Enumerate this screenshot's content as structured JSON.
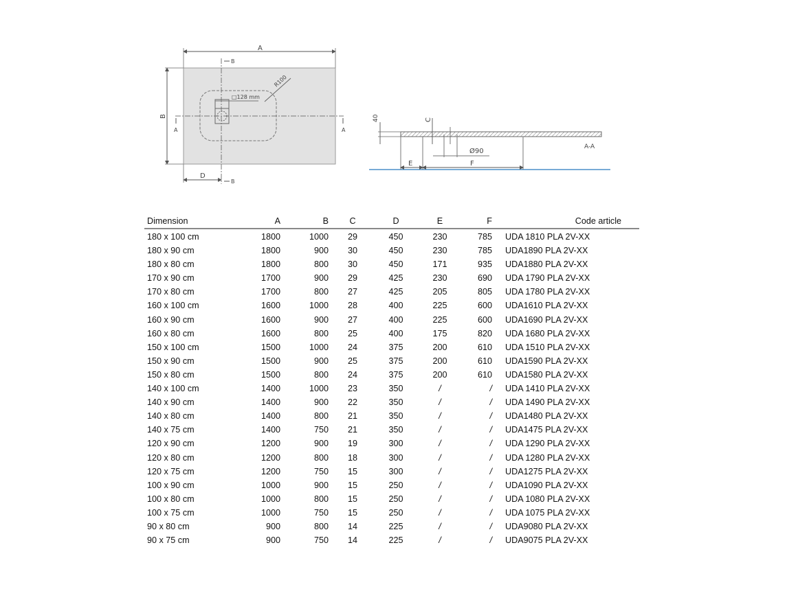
{
  "drawing": {
    "plan": {
      "label_a": "A",
      "label_b": "B",
      "label_d": "D",
      "section_b_top": "B",
      "section_b_bottom": "B",
      "section_a_left": "A",
      "section_a_right": "A",
      "drain_size": "□128 mm",
      "radius": "R100"
    },
    "section": {
      "height_40": "40",
      "label_c": "C",
      "diameter": "Ø90",
      "label_e": "E",
      "label_f": "F",
      "title": "A-A"
    },
    "colors": {
      "tray_fill": "#e2e2e2",
      "floor_line": "#4a8fc9"
    }
  },
  "table": {
    "headers": [
      "Dimension",
      "A",
      "B",
      "C",
      "D",
      "E",
      "F",
      "Code article"
    ],
    "rows": [
      [
        "180 x 100 cm",
        "1800",
        "1000",
        "29",
        "450",
        "230",
        "785",
        "UDA 1810 PLA 2V-XX"
      ],
      [
        "180 x 90 cm",
        "1800",
        "900",
        "30",
        "450",
        "230",
        "785",
        "UDA1890 PLA 2V-XX"
      ],
      [
        "180 x 80 cm",
        "1800",
        "800",
        "30",
        "450",
        "171",
        "935",
        "UDA1880 PLA 2V-XX"
      ],
      [
        "170 x 90 cm",
        "1700",
        "900",
        "29",
        "425",
        "230",
        "690",
        "UDA 1790 PLA 2V-XX"
      ],
      [
        "170 x 80 cm",
        "1700",
        "800",
        "27",
        "425",
        "205",
        "805",
        "UDA 1780 PLA 2V-XX"
      ],
      [
        "160 x 100 cm",
        "1600",
        "1000",
        "28",
        "400",
        "225",
        "600",
        "UDA1610 PLA 2V-XX"
      ],
      [
        "160 x 90 cm",
        "1600",
        "900",
        "27",
        "400",
        "225",
        "600",
        "UDA1690 PLA 2V-XX"
      ],
      [
        "160 x 80 cm",
        "1600",
        "800",
        "25",
        "400",
        "175",
        "820",
        "UDA 1680 PLA 2V-XX"
      ],
      [
        "150 x 100 cm",
        "1500",
        "1000",
        "24",
        "375",
        "200",
        "610",
        "UDA 1510 PLA 2V-XX"
      ],
      [
        "150 x 90 cm",
        "1500",
        "900",
        "25",
        "375",
        "200",
        "610",
        "UDA1590 PLA 2V-XX"
      ],
      [
        "150 x 80 cm",
        "1500",
        "800",
        "24",
        "375",
        "200",
        "610",
        "UDA1580 PLA 2V-XX"
      ],
      [
        "140 x 100 cm",
        "1400",
        "1000",
        "23",
        "350",
        "/",
        "/",
        "UDA 1410 PLA 2V-XX"
      ],
      [
        "140 x 90 cm",
        "1400",
        "900",
        "22",
        "350",
        "/",
        "/",
        "UDA 1490 PLA 2V-XX"
      ],
      [
        "140 x 80 cm",
        "1400",
        "800",
        "21",
        "350",
        "/",
        "/",
        "UDA1480 PLA 2V-XX"
      ],
      [
        "140 x 75 cm",
        "1400",
        "750",
        "21",
        "350",
        "/",
        "/",
        "UDA1475 PLA 2V-XX"
      ],
      [
        "120 x 90 cm",
        "1200",
        "900",
        "19",
        "300",
        "/",
        "/",
        "UDA 1290 PLA 2V-XX"
      ],
      [
        "120 x 80 cm",
        "1200",
        "800",
        "18",
        "300",
        "/",
        "/",
        "UDA 1280 PLA 2V-XX"
      ],
      [
        "120 x 75 cm",
        "1200",
        "750",
        "15",
        "300",
        "/",
        "/",
        "UDA1275 PLA 2V-XX"
      ],
      [
        "100 x 90 cm",
        "1000",
        "900",
        "15",
        "250",
        "/",
        "/",
        "UDA1090 PLA 2V-XX"
      ],
      [
        "100 x 80 cm",
        "1000",
        "800",
        "15",
        "250",
        "/",
        "/",
        "UDA 1080 PLA 2V-XX"
      ],
      [
        "100 x 75 cm",
        "1000",
        "750",
        "15",
        "250",
        "/",
        "/",
        "UDA 1075 PLA 2V-XX"
      ],
      [
        "90 x 80 cm",
        "900",
        "800",
        "14",
        "225",
        "/",
        "/",
        "UDA9080 PLA 2V-XX"
      ],
      [
        "90 x 75 cm",
        "900",
        "750",
        "14",
        "225",
        "/",
        "/",
        "UDA9075 PLA 2V-XX"
      ]
    ]
  }
}
